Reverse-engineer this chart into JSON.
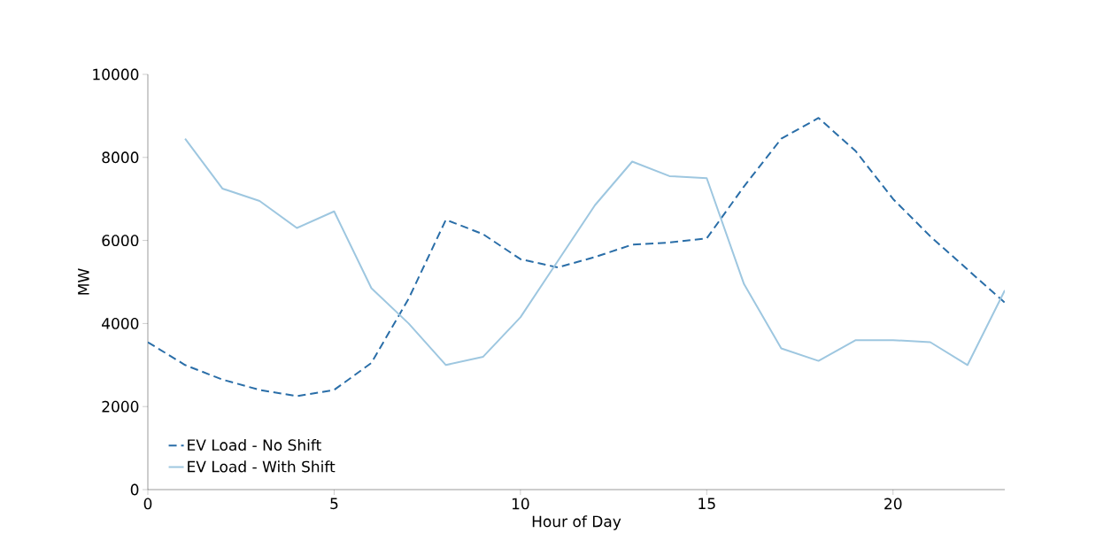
{
  "chart_data": {
    "type": "line",
    "xlabel": "Hour of Day",
    "ylabel": "MW",
    "x": [
      0,
      1,
      2,
      3,
      4,
      5,
      6,
      7,
      8,
      9,
      10,
      11,
      12,
      13,
      14,
      15,
      16,
      17,
      18,
      19,
      20,
      21,
      22,
      23
    ],
    "series": [
      {
        "name": "EV Load - No Shift",
        "color": "#2a6ea8",
        "line_style": "dashed",
        "values": [
          3550,
          3000,
          2650,
          2400,
          2250,
          2400,
          3050,
          4600,
          6500,
          6150,
          5550,
          5350,
          5600,
          5900,
          5950,
          6050,
          7300,
          8450,
          8950,
          8150,
          7000,
          6100,
          5300,
          4500
        ]
      },
      {
        "name": "EV Load - With Shift",
        "color": "#9ec7e0",
        "line_style": "solid",
        "values": [
          null,
          8450,
          7250,
          6950,
          6300,
          6700,
          4850,
          4000,
          3000,
          3200,
          4150,
          5500,
          6850,
          7900,
          7550,
          7500,
          4950,
          3400,
          3100,
          3600,
          3600,
          3550,
          3000,
          4800
        ]
      }
    ],
    "xlim": [
      0,
      23
    ],
    "ylim": [
      0,
      10000
    ],
    "xticks": [
      0,
      5,
      10,
      15,
      20
    ],
    "yticks": [
      0,
      2000,
      4000,
      6000,
      8000,
      10000
    ],
    "grid": false,
    "legend": "bottom left"
  }
}
